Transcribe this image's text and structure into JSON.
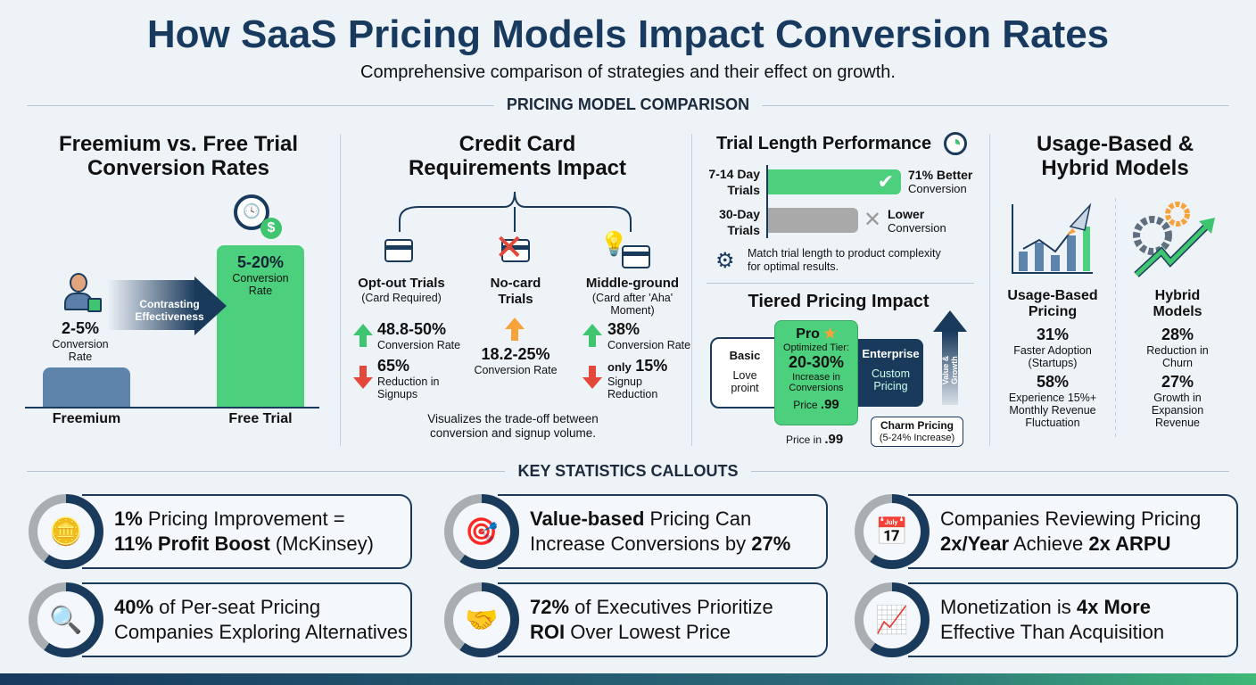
{
  "title": "How SaaS Pricing Models Impact Conversion Rates",
  "subtitle": "Comprehensive comparison of strategies and their effect on growth.",
  "section1": "PRICING MODEL COMPARISON",
  "section2": "KEY STATISTICS CALLOUTS",
  "colors": {
    "navy": "#1a3a5c",
    "green": "#4cd07d",
    "gray": "#a9a9a9",
    "orange": "#f5a33a",
    "red": "#e2493b"
  },
  "freemium": {
    "title1": "Freemium vs. Free Trial",
    "title2": "Conversion Rates",
    "f_value": "2-5%",
    "f_label1": "Conversion",
    "f_label2": "Rate",
    "t_value": "5-20%",
    "t_label1": "Conversion",
    "t_label2": "Rate",
    "arrow1": "Contrasting",
    "arrow2": "Effectiveness",
    "x1": "Freemium",
    "x2": "Free Trial"
  },
  "credit": {
    "title1": "Credit Card",
    "title2": "Requirements Impact",
    "opt": {
      "name": "Opt-out Trials",
      "sub": "(Card Required)",
      "v1": "48.8-50%",
      "l1": "Conversion Rate",
      "v2": "65%",
      "l2a": "Reduction in",
      "l2b": "Signups"
    },
    "nocard": {
      "name1": "No-card",
      "name2": "Trials",
      "v1": "18.2-25%",
      "l1": "Conversion Rate"
    },
    "mid": {
      "name": "Middle-ground",
      "sub1": "(Card after 'Aha'",
      "sub2": "Moment)",
      "v1": "38%",
      "l1": "Conversion Rate",
      "pre": "only",
      "v2": "15%",
      "l2a": "Signup",
      "l2b": "Reduction"
    },
    "note1": "Visualizes the trade-off between",
    "note2": "conversion and signup volume."
  },
  "trial": {
    "title": "Trial Length Performance",
    "r1a": "7-14 Day",
    "r1b": "Trials",
    "r1v": "71% Better",
    "r1l": "Conversion",
    "r2a": "30-Day",
    "r2b": "Trials",
    "r2v": "Lower",
    "r2l": "Conversion",
    "tip1": "Match trial length to product complexity",
    "tip2": "for optimal results."
  },
  "tiered": {
    "title": "Tiered Pricing Impact",
    "basic": "Basic",
    "basic_d1": "Love",
    "basic_d2": "proint",
    "pro": "Pro",
    "pro_sub": "Optimized Tier:",
    "pro_v": "20-30%",
    "pro_l1": "Increase in",
    "pro_l2": "Conversions",
    "pro_price": "Price",
    "pro_price_v": ".99",
    "ent": "Enterprise",
    "ent_d1": "Custom",
    "ent_d2": "Pricing",
    "arrow": "Value & Growth",
    "below": "Price in",
    "below_v": ".99",
    "charm": "Charm Pricing",
    "charm_sub": "(5-24% Increase)"
  },
  "usage": {
    "title1": "Usage-Based &",
    "title2": "Hybrid Models",
    "u": {
      "name1": "Usage-Based",
      "name2": "Pricing",
      "v1": "31%",
      "l1a": "Faster Adoption",
      "l1b": "(Startups)",
      "v2": "58%",
      "l2a": "Experience 15%+",
      "l2b": "Monthly Revenue",
      "l2c": "Fluctuation"
    },
    "h": {
      "name1": "Hybrid",
      "name2": "Models",
      "v1": "28%",
      "l1a": "Reduction in",
      "l1b": "Churn",
      "v2": "27%",
      "l2a": "Growth in",
      "l2b": "Expansion",
      "l2c": "Revenue"
    }
  },
  "callouts": [
    {
      "icon": "coins-icon",
      "a1": "1%",
      "a2": " Pricing Improvement =",
      "b1": "11% Profit Boost",
      "b2": " (McKinsey)"
    },
    {
      "icon": "target-icon",
      "a1": "Value-based",
      "a2": " Pricing Can",
      "b1": "",
      "b2": "Increase Conversions by ",
      "b3": "27%"
    },
    {
      "icon": "calendar-icon",
      "a1": "",
      "a2": "Companies Reviewing Pricing",
      "b1": "2x/Year",
      "b2": " Achieve ",
      "b3": "2x ARPU"
    },
    {
      "icon": "magnifier-icon",
      "a1": "40%",
      "a2": " of Per-seat Pricing",
      "b1": "",
      "b2": "Companies Exploring Alternatives"
    },
    {
      "icon": "handshake-icon",
      "a1": "72%",
      "a2": " of Executives Prioritize",
      "b1": "ROI",
      "b2": " Over Lowest Price"
    },
    {
      "icon": "growth-chart-icon",
      "a1": "",
      "a2": "Monetization is ",
      "a3": "4x More",
      "b1": "",
      "b2": "Effective Than Acquisition"
    }
  ]
}
